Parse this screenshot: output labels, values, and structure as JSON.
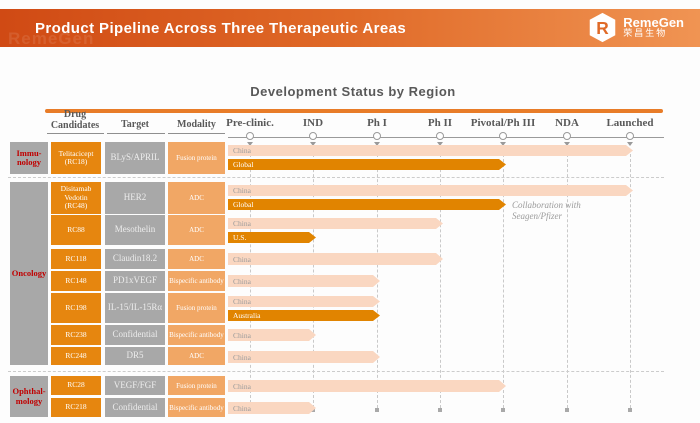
{
  "header": {
    "title": "Product Pipeline Across Three Therapeutic Areas",
    "logo_en": "RemeGen",
    "logo_cn": "荣昌生物"
  },
  "chart_title": "Development Status by Region",
  "table_headers": {
    "drug": "Drug Candidates",
    "target": "Target",
    "modality": "Modality"
  },
  "colors": {
    "header_gradient_left": "#d04a14",
    "header_gradient_right": "#f09453",
    "accent_rule": "#e87c28",
    "drug_box": "#e6860f",
    "modality_box": "#f1a765",
    "gray_box": "#a8a8a8",
    "category_text": "#c00000",
    "bar_light": "#fad7c1",
    "bar_dark": "#e18400"
  },
  "chart_data": {
    "type": "bar",
    "title": "Development Status by Region",
    "stages": [
      "Pre-clinic.",
      "IND",
      "Ph I",
      "Ph II",
      "Pivotal/Ph III",
      "NDA",
      "Launched"
    ],
    "legend_note": "light bars = China/regional status, dark bars = Global/other region status",
    "sections": [
      {
        "name": "Immu-nology",
        "rows": [
          {
            "drug": "Telitacicept (RC18)",
            "target": "BLyS/APRIL",
            "modality": "Fusion protein",
            "bars": [
              {
                "region": "China",
                "stage": "Launched",
                "variant": "light"
              },
              {
                "region": "Global",
                "stage": "Pivotal/Ph III",
                "variant": "dark"
              }
            ]
          }
        ]
      },
      {
        "name": "Oncology",
        "rows": [
          {
            "drug": "Disitamab Vedotin (RC48)",
            "target": "HER2",
            "modality": "ADC",
            "bars": [
              {
                "region": "China",
                "stage": "Launched",
                "variant": "light"
              },
              {
                "region": "Global",
                "stage": "Pivotal/Ph III",
                "variant": "dark"
              }
            ],
            "note": "Collaboration with Seagen/Pfizer"
          },
          {
            "drug": "RC88",
            "target": "Mesothelin",
            "modality": "ADC",
            "bars": [
              {
                "region": "China",
                "stage": "Ph II",
                "variant": "light"
              },
              {
                "region": "U.S.",
                "stage": "IND",
                "variant": "dark"
              }
            ]
          },
          {
            "drug": "RC118",
            "target": "Claudin18.2",
            "modality": "ADC",
            "bars": [
              {
                "region": "China",
                "stage": "Ph II",
                "variant": "light"
              }
            ]
          },
          {
            "drug": "RC148",
            "target": "PD1xVEGF",
            "modality": "Bispecific antibody",
            "bars": [
              {
                "region": "China",
                "stage": "Ph I",
                "variant": "light"
              }
            ]
          },
          {
            "drug": "RC198",
            "target": "IL-15/IL-15Rα",
            "modality": "Fusion protein",
            "bars": [
              {
                "region": "China",
                "stage": "Ph I",
                "variant": "light"
              },
              {
                "region": "Australia",
                "stage": "Ph I",
                "variant": "dark"
              }
            ]
          },
          {
            "drug": "RC238",
            "target": "Confidential",
            "modality": "Bispecific antibody",
            "bars": [
              {
                "region": "China",
                "stage": "IND",
                "variant": "light"
              }
            ]
          },
          {
            "drug": "RC248",
            "target": "DR5",
            "modality": "ADC",
            "bars": [
              {
                "region": "China",
                "stage": "Ph I",
                "variant": "light"
              }
            ]
          }
        ]
      },
      {
        "name": "Ophthal-mology",
        "rows": [
          {
            "drug": "RC28",
            "target": "VEGF/FGF",
            "modality": "Fusion protein",
            "bars": [
              {
                "region": "China",
                "stage": "Pivotal/Ph III",
                "variant": "light"
              }
            ]
          },
          {
            "drug": "RC218",
            "target": "Confidential",
            "modality": "Bispecific antibody",
            "bars": [
              {
                "region": "China",
                "stage": "IND",
                "variant": "light"
              }
            ]
          }
        ]
      }
    ]
  }
}
